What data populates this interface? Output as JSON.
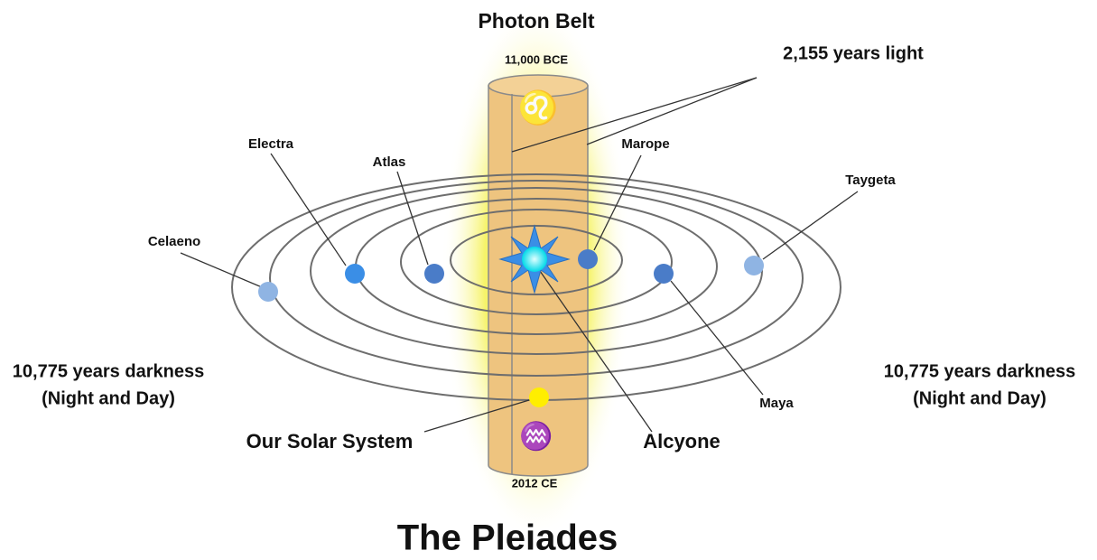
{
  "title": "The Pleiades",
  "belt": {
    "label": "Photon Belt",
    "top_date": "11,000 BCE",
    "bottom_date": "2012 CE",
    "top_sign": "♌",
    "bottom_sign": "♒",
    "width_label": "2,155 years light"
  },
  "stars": [
    {
      "label": "Celaeno"
    },
    {
      "label": "Electra"
    },
    {
      "label": "Atlas"
    },
    {
      "label": "Marope"
    },
    {
      "label": "Maya"
    },
    {
      "label": "Taygeta"
    }
  ],
  "center_star": "Alcyone",
  "solar_system": "Our Solar System",
  "darkness": [
    {
      "line1": "10,775 years darkness",
      "line2": "(Night and Day)"
    },
    {
      "line1": "10,775 years darkness",
      "line2": "(Night and Day)"
    }
  ]
}
